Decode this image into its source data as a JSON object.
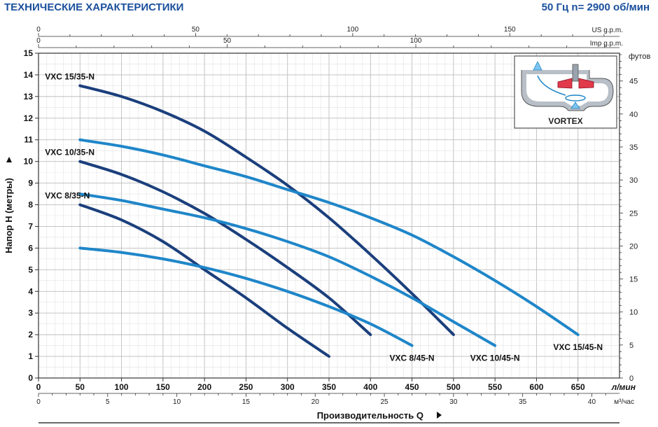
{
  "header": {
    "title": "ТЕХНИЧЕСКИЕ ХАРАКТЕРИСТИКИ",
    "spec": "50 Гц  n= 2900 об/мин"
  },
  "colors": {
    "dark_series": "#1b3f7c",
    "light_series": "#1f86c9",
    "axis": "#333333",
    "grid": "#cfcfcf",
    "header": "#1a4f9c"
  },
  "inset": {
    "label": "VORTEX",
    "icon": "vortex-impeller-icon"
  },
  "chart_data": {
    "type": "line",
    "xlabel": "Производительность  Q",
    "ylabel": "Напор  H (метры)",
    "x_unit": "л/мин",
    "xlim": [
      0,
      700
    ],
    "ylim": [
      0,
      15
    ],
    "x_ticks": [
      0,
      50,
      100,
      150,
      200,
      250,
      300,
      350,
      400,
      450,
      500,
      550,
      600,
      650
    ],
    "y_ticks": [
      0,
      1,
      2,
      3,
      4,
      5,
      6,
      7,
      8,
      9,
      10,
      11,
      12,
      13,
      14,
      15
    ],
    "grid": true,
    "secondary_axes": {
      "top_us_gpm": {
        "label": "US g.p.m.",
        "ticks": [
          0,
          50,
          100,
          150
        ]
      },
      "top_imp_gpm": {
        "label": "Imp g.p.m.",
        "ticks": [
          0,
          50,
          100
        ]
      },
      "bottom_m3h": {
        "label": "м³/час",
        "ticks": [
          0,
          5,
          10,
          15,
          20,
          25,
          30,
          35,
          40
        ]
      },
      "right_feet": {
        "label": "футов",
        "ticks": [
          0,
          5,
          10,
          15,
          20,
          25,
          30,
          35,
          40,
          45
        ]
      }
    },
    "series": [
      {
        "name": "VXC 15/35-N",
        "tone": "dark",
        "x": [
          50,
          100,
          150,
          200,
          250,
          300,
          350,
          400,
          450,
          500
        ],
        "y": [
          13.5,
          13.0,
          12.3,
          11.4,
          10.2,
          8.9,
          7.4,
          5.7,
          3.9,
          2.0
        ]
      },
      {
        "name": "VXC 10/35-N",
        "tone": "dark",
        "x": [
          50,
          100,
          150,
          200,
          250,
          300,
          350,
          400
        ],
        "y": [
          10.0,
          9.4,
          8.6,
          7.6,
          6.4,
          5.1,
          3.7,
          2.0
        ]
      },
      {
        "name": "VXC  8/35-N",
        "tone": "dark",
        "x": [
          50,
          100,
          150,
          200,
          250,
          300,
          350
        ],
        "y": [
          8.0,
          7.3,
          6.3,
          5.0,
          3.7,
          2.3,
          1.0
        ]
      },
      {
        "name": "VXC 15/45-N",
        "tone": "light",
        "x": [
          50,
          100,
          150,
          200,
          250,
          300,
          350,
          400,
          450,
          500,
          550,
          600,
          650
        ],
        "y": [
          11.0,
          10.7,
          10.3,
          9.8,
          9.3,
          8.7,
          8.1,
          7.4,
          6.6,
          5.6,
          4.5,
          3.3,
          2.0
        ]
      },
      {
        "name": "VXC 10/45-N",
        "tone": "light",
        "x": [
          50,
          100,
          150,
          200,
          250,
          300,
          350,
          400,
          450,
          500,
          550
        ],
        "y": [
          8.5,
          8.2,
          7.8,
          7.4,
          6.9,
          6.3,
          5.6,
          4.7,
          3.7,
          2.6,
          1.5
        ]
      },
      {
        "name": "VXC  8/45-N",
        "tone": "light",
        "x": [
          50,
          100,
          150,
          200,
          250,
          300,
          350,
          400,
          450
        ],
        "y": [
          6.0,
          5.8,
          5.5,
          5.1,
          4.6,
          4.0,
          3.3,
          2.5,
          1.5
        ]
      }
    ]
  }
}
